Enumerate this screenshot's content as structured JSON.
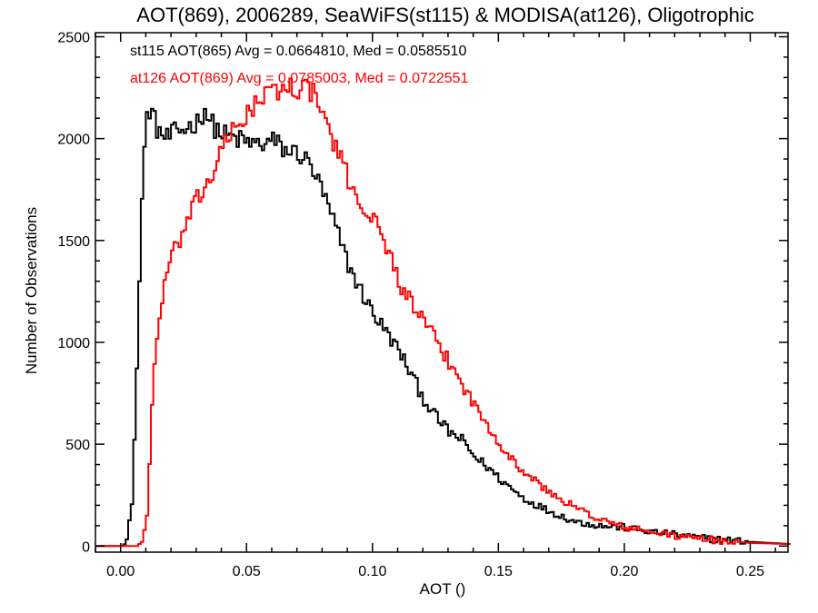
{
  "chart_data": {
    "type": "line",
    "title": "AOT(869), 2006289, SeaWiFS(st115) & MODISA(at126), Oligotrophic",
    "xlabel": "AOT ()",
    "ylabel": "Number of Observations",
    "xlim": [
      -0.01,
      0.265
    ],
    "ylim": [
      -30,
      2520
    ],
    "xticks": [
      0.0,
      0.05,
      0.1,
      0.15,
      0.2,
      0.25
    ],
    "xtick_labels": [
      "0.00",
      "0.05",
      "0.10",
      "0.15",
      "0.20",
      "0.25"
    ],
    "yticks": [
      0,
      500,
      1000,
      1500,
      2000,
      2500
    ],
    "ytick_labels": [
      "0",
      "500",
      "1000",
      "1500",
      "2000",
      "2500"
    ],
    "grid": false,
    "legend_position": "top-left",
    "series": [
      {
        "name": "st115 AOT(865) Avg = 0.0664810, Med = 0.0585510",
        "color": "#000000",
        "step": 0.001,
        "x": [
          -0.01,
          0.0,
          0.002,
          0.004,
          0.005,
          0.006,
          0.007,
          0.008,
          0.009,
          0.01,
          0.011,
          0.012,
          0.014,
          0.016,
          0.018,
          0.02,
          0.025,
          0.03,
          0.033,
          0.035,
          0.04,
          0.045,
          0.05,
          0.055,
          0.06,
          0.065,
          0.07,
          0.075,
          0.08,
          0.085,
          0.09,
          0.095,
          0.1,
          0.105,
          0.11,
          0.115,
          0.12,
          0.125,
          0.13,
          0.135,
          0.14,
          0.145,
          0.15,
          0.155,
          0.16,
          0.17,
          0.18,
          0.19,
          0.2,
          0.21,
          0.22,
          0.23,
          0.24,
          0.25,
          0.265
        ],
        "y": [
          0,
          0,
          50,
          200,
          500,
          900,
          1300,
          1700,
          1950,
          2100,
          2150,
          2120,
          2050,
          2020,
          2000,
          2020,
          2050,
          2080,
          2150,
          2080,
          2020,
          2000,
          1980,
          1970,
          1990,
          1940,
          1930,
          1870,
          1730,
          1560,
          1380,
          1250,
          1140,
          1050,
          960,
          840,
          720,
          630,
          560,
          520,
          440,
          390,
          330,
          280,
          230,
          170,
          120,
          100,
          90,
          70,
          55,
          40,
          30,
          20,
          10
        ]
      },
      {
        "name": "at126 AOT(869) Avg = 0.0785003, Med = 0.0722551",
        "color": "#ff0000",
        "step": 0.001,
        "x": [
          -0.01,
          0.006,
          0.008,
          0.01,
          0.011,
          0.012,
          0.014,
          0.016,
          0.018,
          0.02,
          0.025,
          0.03,
          0.035,
          0.04,
          0.045,
          0.05,
          0.055,
          0.06,
          0.065,
          0.07,
          0.075,
          0.08,
          0.085,
          0.09,
          0.095,
          0.1,
          0.105,
          0.11,
          0.115,
          0.12,
          0.125,
          0.13,
          0.135,
          0.14,
          0.145,
          0.15,
          0.155,
          0.16,
          0.17,
          0.18,
          0.19,
          0.2,
          0.21,
          0.22,
          0.23,
          0.24,
          0.25,
          0.265
        ],
        "y": [
          0,
          0,
          20,
          150,
          400,
          700,
          1050,
          1200,
          1350,
          1420,
          1560,
          1700,
          1800,
          1950,
          2050,
          2130,
          2190,
          2230,
          2250,
          2250,
          2240,
          2120,
          1950,
          1800,
          1680,
          1600,
          1480,
          1300,
          1190,
          1100,
          1000,
          900,
          800,
          690,
          600,
          510,
          420,
          360,
          260,
          190,
          130,
          90,
          70,
          50,
          35,
          25,
          15,
          10
        ]
      }
    ]
  }
}
